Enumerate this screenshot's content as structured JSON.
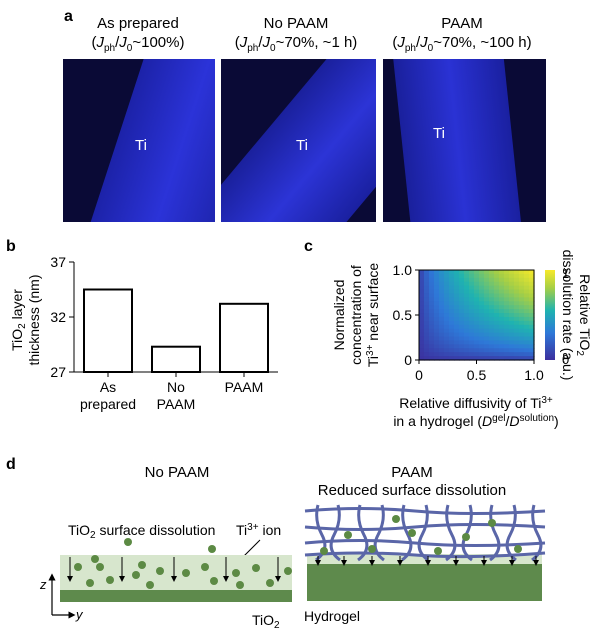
{
  "panel_a": {
    "label": "a",
    "panels": [
      {
        "title_line1": "As prepared",
        "title_line2": "(Jph/J0~100%)",
        "ti_label": "Ti"
      },
      {
        "title_line1": "No PAAM",
        "title_line2": "(Jph/J0~70%, ~1 h)",
        "ti_label": "Ti"
      },
      {
        "title_line1": "PAAM",
        "title_line2": "(Jph/J0~70%, ~100 h)",
        "ti_label": "Ti"
      }
    ]
  },
  "panel_b": {
    "label": "b",
    "chart_data": {
      "type": "bar",
      "categories": [
        "As prepared",
        "No PAAM",
        "PAAM"
      ],
      "values": [
        34.5,
        29.3,
        33.2
      ],
      "ylabel": "TiO2 layer thickness (nm)",
      "ylim": [
        27,
        37
      ],
      "yticks": [
        27,
        32,
        37
      ]
    }
  },
  "panel_c": {
    "label": "c",
    "chart_data": {
      "type": "heatmap",
      "xlabel_line1": "Relative diffusivity of Ti3+",
      "xlabel_line2": "in a hydrogel (Dgel/Dsolution)",
      "ylabel_line1": "Normalized",
      "ylabel_line2": "concentration of",
      "ylabel_line3": "Ti3+ near surface",
      "xlim": [
        0,
        1.0
      ],
      "ylim": [
        0,
        1.0
      ],
      "xticks": [
        "0",
        "0.5",
        "1.0"
      ],
      "yticks": [
        "0",
        "0.5",
        "1.0"
      ],
      "colorbar_label_line1": "Relative TiO2",
      "colorbar_label_line2": "dissolution rate (a.u.)",
      "colorbar_ticks": [
        "0",
        "1"
      ]
    }
  },
  "panel_d": {
    "label": "d",
    "left_title": "No PAAM",
    "right_title_line1": "PAAM",
    "right_title_line2": "Reduced surface dissolution",
    "dissolution_label": "TiO2 surface dissolution",
    "ion_label": "Ti3+ ion",
    "substrate_label": "TiO2",
    "hydrogel_label": "Hydrogel",
    "axis_z": "z",
    "axis_y": "y",
    "colors": {
      "substrate": "#5e8a4c",
      "solution": "#d7e6cd",
      "ion": "#5c8a44",
      "gel": "#5a66a8"
    }
  }
}
